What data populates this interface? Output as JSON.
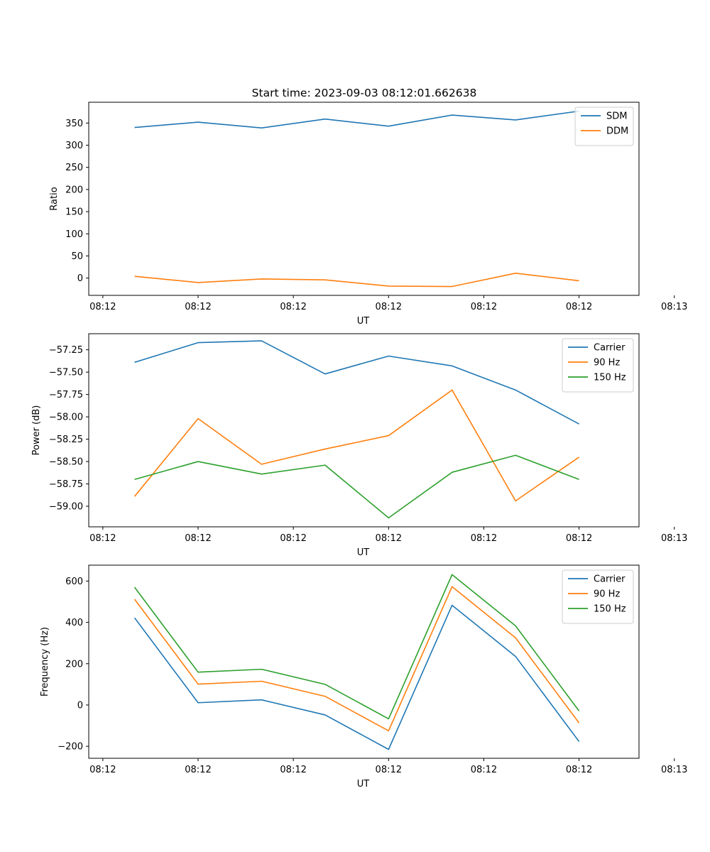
{
  "figure_title": "Start time: 2023-09-03 08:12:01.662638",
  "colors": {
    "blue": "#1f77b4",
    "orange": "#ff7f0e",
    "green": "#2ca02c"
  },
  "chart_data": [
    {
      "type": "line",
      "xlabel": "UT",
      "ylabel": "Ratio",
      "x": [
        1,
        2,
        3,
        4,
        5,
        6,
        7,
        8
      ],
      "xlim": [
        0.278,
        8.944
      ],
      "x_ticks": [
        {
          "pos": 0.5,
          "label": "08:12"
        },
        {
          "pos": 2.0,
          "label": "08:12"
        },
        {
          "pos": 3.5,
          "label": "08:12"
        },
        {
          "pos": 5.0,
          "label": "08:12"
        },
        {
          "pos": 6.5,
          "label": "08:12"
        },
        {
          "pos": 8.0,
          "label": "08:12"
        },
        {
          "pos": 9.5,
          "label": "08:13"
        }
      ],
      "ylim": [
        -39,
        397
      ],
      "y_ticks": [
        0,
        50,
        100,
        150,
        200,
        250,
        300,
        350
      ],
      "y_tick_labels": [
        "0",
        "50",
        "100",
        "150",
        "200",
        "250",
        "300",
        "350"
      ],
      "legend_position": "top-right",
      "series": [
        {
          "name": "SDM",
          "color": "#1f77b4",
          "values": [
            340,
            352,
            339,
            359,
            343,
            368,
            357,
            377
          ]
        },
        {
          "name": "DDM",
          "color": "#ff7f0e",
          "values": [
            4,
            -10,
            -2,
            -4,
            -18,
            -19,
            11,
            -6
          ]
        }
      ]
    },
    {
      "type": "line",
      "xlabel": "UT",
      "ylabel": "Power (dB)",
      "x": [
        1,
        2,
        3,
        4,
        5,
        6,
        7,
        8
      ],
      "xlim": [
        0.278,
        8.944
      ],
      "x_ticks": [
        {
          "pos": 0.5,
          "label": "08:12"
        },
        {
          "pos": 2.0,
          "label": "08:12"
        },
        {
          "pos": 3.5,
          "label": "08:12"
        },
        {
          "pos": 5.0,
          "label": "08:12"
        },
        {
          "pos": 6.5,
          "label": "08:12"
        },
        {
          "pos": 8.0,
          "label": "08:12"
        },
        {
          "pos": 9.5,
          "label": "08:13"
        }
      ],
      "ylim": [
        -59.23,
        -57.07
      ],
      "y_ticks": [
        -59.0,
        -58.75,
        -58.5,
        -58.25,
        -58.0,
        -57.75,
        -57.5,
        -57.25
      ],
      "y_tick_labels": [
        "−59.00",
        "−58.75",
        "−58.50",
        "−58.25",
        "−58.00",
        "−57.75",
        "−57.50",
        "−57.25"
      ],
      "legend_position": "top-right",
      "series": [
        {
          "name": "Carrier",
          "color": "#1f77b4",
          "values": [
            -57.39,
            -57.17,
            -57.15,
            -57.52,
            -57.32,
            -57.43,
            -57.7,
            -58.08
          ]
        },
        {
          "name": "90 Hz",
          "color": "#ff7f0e",
          "values": [
            -58.89,
            -58.02,
            -58.53,
            -58.36,
            -58.21,
            -57.7,
            -58.94,
            -58.45
          ]
        },
        {
          "name": "150 Hz",
          "color": "#2ca02c",
          "values": [
            -58.7,
            -58.5,
            -58.64,
            -58.54,
            -59.13,
            -58.62,
            -58.43,
            -58.7
          ]
        }
      ]
    },
    {
      "type": "line",
      "xlabel": "UT",
      "ylabel": "Frequency (Hz)",
      "x": [
        1,
        2,
        3,
        4,
        5,
        6,
        7,
        8
      ],
      "xlim": [
        0.278,
        8.944
      ],
      "x_ticks": [
        {
          "pos": 0.5,
          "label": "08:12"
        },
        {
          "pos": 2.0,
          "label": "08:12"
        },
        {
          "pos": 3.5,
          "label": "08:12"
        },
        {
          "pos": 5.0,
          "label": "08:12"
        },
        {
          "pos": 6.5,
          "label": "08:12"
        },
        {
          "pos": 8.0,
          "label": "08:12"
        },
        {
          "pos": 9.5,
          "label": "08:13"
        }
      ],
      "ylim": [
        -258,
        677
      ],
      "y_ticks": [
        -200,
        0,
        200,
        400,
        600
      ],
      "y_tick_labels": [
        "−200",
        "0",
        "200",
        "400",
        "600"
      ],
      "legend_position": "top-right",
      "series": [
        {
          "name": "Carrier",
          "color": "#1f77b4",
          "values": [
            422,
            11,
            25,
            -48,
            -215,
            483,
            235,
            -177
          ]
        },
        {
          "name": "90 Hz",
          "color": "#ff7f0e",
          "values": [
            512,
            101,
            115,
            42,
            -125,
            573,
            325,
            -87
          ]
        },
        {
          "name": "150 Hz",
          "color": "#2ca02c",
          "values": [
            570,
            159,
            173,
            100,
            -67,
            631,
            383,
            -29
          ]
        }
      ]
    }
  ]
}
